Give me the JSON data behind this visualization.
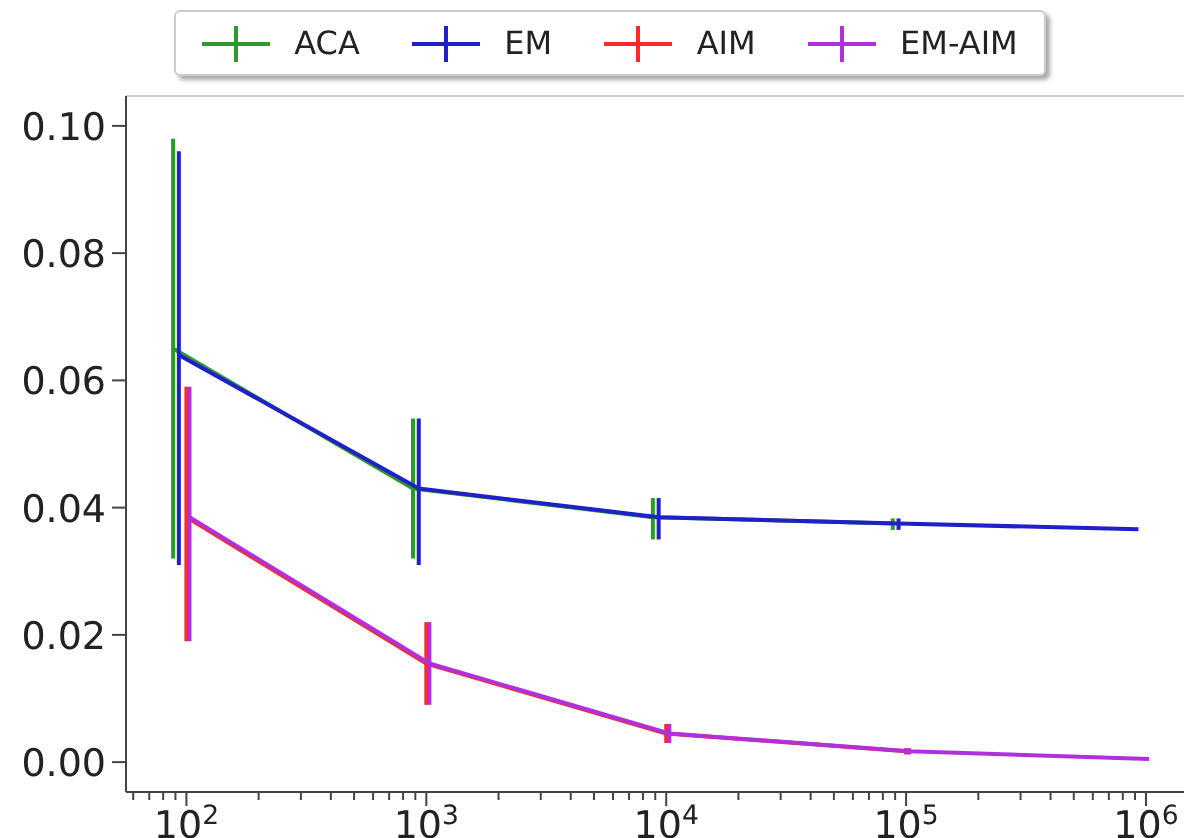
{
  "chart_data": {
    "type": "line",
    "marker": "none",
    "line_style": "solid",
    "legend": "top",
    "log": "x",
    "xlim": [
      56,
      1440000
    ],
    "ylim": [
      -0.0047,
      0.1047
    ],
    "xticks": [
      {
        "value": 60,
        "label": null
      },
      {
        "value": 70,
        "label": null
      },
      {
        "value": 80,
        "label": null
      },
      {
        "value": 90,
        "label": null
      },
      {
        "value": 100,
        "label": "10$^{2}$"
      },
      {
        "value": 200,
        "label": null
      },
      {
        "value": 300,
        "label": null
      },
      {
        "value": 400,
        "label": null
      },
      {
        "value": 500,
        "label": null
      },
      {
        "value": 600,
        "label": null
      },
      {
        "value": 700,
        "label": null
      },
      {
        "value": 800,
        "label": null
      },
      {
        "value": 900,
        "label": null
      },
      {
        "value": 1000,
        "label": "10$^{3}$"
      },
      {
        "value": 2000,
        "label": null
      },
      {
        "value": 3000,
        "label": null
      },
      {
        "value": 4000,
        "label": null
      },
      {
        "value": 5000,
        "label": null
      },
      {
        "value": 6000,
        "label": null
      },
      {
        "value": 7000,
        "label": null
      },
      {
        "value": 8000,
        "label": null
      },
      {
        "value": 9000,
        "label": null
      },
      {
        "value": 10000,
        "label": "10$^{4}$"
      },
      {
        "value": 20000,
        "label": null
      },
      {
        "value": 30000,
        "label": null
      },
      {
        "value": 40000,
        "label": null
      },
      {
        "value": 50000,
        "label": null
      },
      {
        "value": 60000,
        "label": null
      },
      {
        "value": 70000,
        "label": null
      },
      {
        "value": 80000,
        "label": null
      },
      {
        "value": 90000,
        "label": null
      },
      {
        "value": 100000,
        "label": "10$^{5}$"
      },
      {
        "value": 200000,
        "label": null
      },
      {
        "value": 300000,
        "label": null
      },
      {
        "value": 400000,
        "label": null
      },
      {
        "value": 500000,
        "label": null
      },
      {
        "value": 600000,
        "label": null
      },
      {
        "value": 700000,
        "label": null
      },
      {
        "value": 800000,
        "label": null
      },
      {
        "value": 900000,
        "label": null
      },
      {
        "value": 1000000,
        "label": "10$^{6}$"
      }
    ],
    "yticks": [
      {
        "value": 0,
        "label": "0.00"
      },
      {
        "value": 0.02,
        "label": "0.02"
      },
      {
        "value": 0.04,
        "label": "0.04"
      },
      {
        "value": 0.06,
        "label": "0.06"
      },
      {
        "value": 0.08,
        "label": "0.08"
      },
      {
        "value": 0.1,
        "label": "0.10"
      }
    ],
    "series": [
      {
        "name": "ACA",
        "color": "#2e9a2e",
        "x": [
          88,
          880,
          8800,
          88000
        ],
        "values": [
          0.065,
          0.043,
          0.0385,
          0.0375
        ],
        "errors": [
          [
            0.032,
            0.098
          ],
          [
            0.032,
            0.054
          ],
          [
            0.035,
            0.0415
          ],
          [
            0.0365,
            0.0383
          ]
        ]
      },
      {
        "name": "EM",
        "color": "#2020c8",
        "x": [
          93,
          930,
          9300,
          93000,
          930000
        ],
        "values": [
          0.064,
          0.043,
          0.0385,
          0.0375,
          0.0366
        ],
        "errors": [
          [
            0.031,
            0.096
          ],
          [
            0.031,
            0.054
          ],
          [
            0.035,
            0.0415
          ],
          [
            0.0365,
            0.0383
          ],
          null
        ]
      },
      {
        "name": "AIM",
        "color": "#ff2a2a",
        "x": [
          100,
          1000,
          10000,
          100000
        ],
        "values": [
          0.0385,
          0.0155,
          0.0045,
          0.0017
        ],
        "errors": [
          [
            0.019,
            0.059
          ],
          [
            0.009,
            0.022
          ],
          [
            0.003,
            0.006
          ],
          [
            0.0012,
            0.0022
          ]
        ]
      },
      {
        "name": "EM-AIM",
        "color": "#b030dc",
        "x": [
          103,
          1030,
          10300,
          103000,
          1030000
        ],
        "values": [
          0.0385,
          0.0155,
          0.0045,
          0.0017,
          0.0005
        ],
        "errors": [
          [
            0.019,
            0.059
          ],
          [
            0.009,
            0.022
          ],
          [
            0.003,
            0.006
          ],
          [
            0.0012,
            0.0022
          ],
          null
        ]
      }
    ]
  }
}
